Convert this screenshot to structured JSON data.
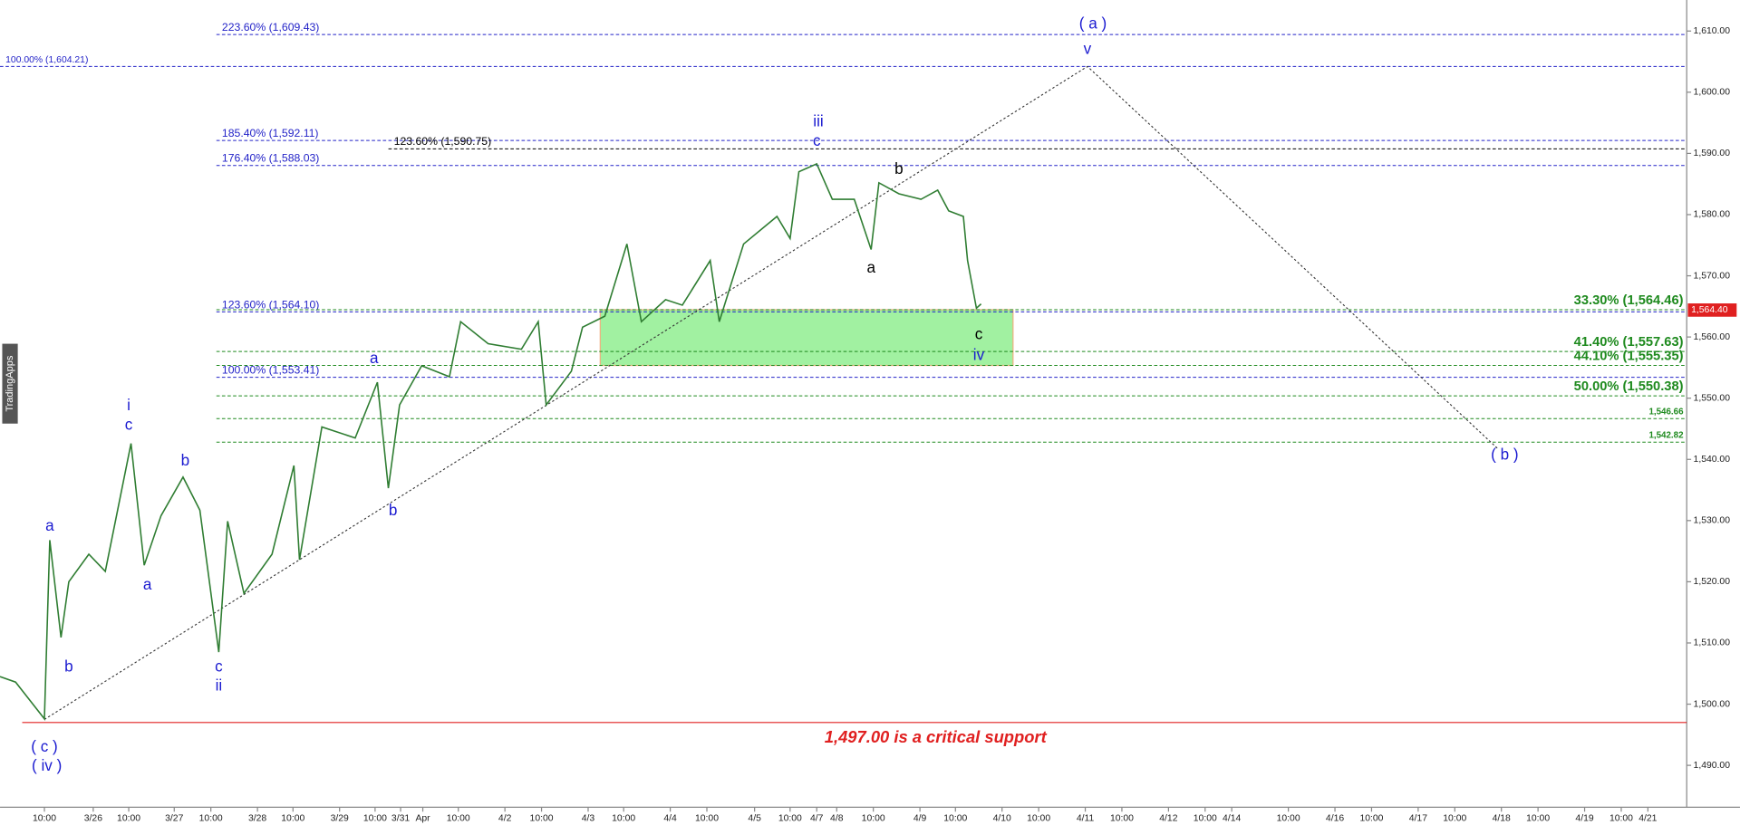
{
  "chart_data": {
    "type": "line",
    "ylim": [
      1483.15,
      1615.07
    ],
    "yticks": [
      {
        "value": 1490,
        "label": "1,490.00"
      },
      {
        "value": 1500,
        "label": "1,500.00"
      },
      {
        "value": 1510,
        "label": "1,510.00"
      },
      {
        "value": 1520,
        "label": "1,520.00"
      },
      {
        "value": 1530,
        "label": "1,530.00"
      },
      {
        "value": 1540,
        "label": "1,540.00"
      },
      {
        "value": 1550,
        "label": "1,550.00"
      },
      {
        "value": 1560,
        "label": "1,560.00"
      },
      {
        "value": 1570,
        "label": "1,570.00"
      },
      {
        "value": 1580,
        "label": "1,580.00"
      },
      {
        "value": 1590,
        "label": "1,590.00"
      },
      {
        "value": 1600,
        "label": "1,600.00"
      },
      {
        "value": 1610,
        "label": "1,610.00"
      }
    ],
    "xticks": [
      {
        "value": 0,
        "label": "10:00"
      },
      {
        "value": 1,
        "label": "3/26"
      },
      {
        "value": 2,
        "label": "10:00"
      },
      {
        "value": 3,
        "label": "3/27"
      },
      {
        "value": 4,
        "label": "10:00"
      },
      {
        "value": 5,
        "label": "3/28"
      },
      {
        "value": 6,
        "label": "10:00"
      },
      {
        "value": 7,
        "label": "3/29"
      },
      {
        "value": 8,
        "label": "10:00"
      },
      {
        "value": 9,
        "label": "3/31"
      },
      {
        "value": 10,
        "label": "Apr"
      },
      {
        "value": 11,
        "label": "10:00"
      },
      {
        "value": 12,
        "label": "4/2"
      },
      {
        "value": 13,
        "label": "10:00"
      },
      {
        "value": 14,
        "label": "4/3"
      },
      {
        "value": 15,
        "label": "10:00"
      },
      {
        "value": 16,
        "label": "4/4"
      },
      {
        "value": 17,
        "label": "10:00"
      },
      {
        "value": 18,
        "label": "4/5"
      },
      {
        "value": 19,
        "label": "10:00"
      },
      {
        "value": 20,
        "label": "4/7"
      },
      {
        "value": 21,
        "label": "4/8"
      },
      {
        "value": 22,
        "label": "10:00"
      },
      {
        "value": 23,
        "label": "4/9"
      },
      {
        "value": 24,
        "label": "10:00"
      },
      {
        "value": 25,
        "label": "4/10"
      },
      {
        "value": 26,
        "label": "10:00"
      },
      {
        "value": 27,
        "label": "4/11"
      },
      {
        "value": 28,
        "label": "10:00"
      },
      {
        "value": 29,
        "label": "4/12"
      },
      {
        "value": 30,
        "label": "10:00"
      },
      {
        "value": 31,
        "label": "4/14"
      },
      {
        "value": 32,
        "label": "10:00"
      },
      {
        "value": 33,
        "label": "4/16"
      },
      {
        "value": 34,
        "label": "10:00"
      },
      {
        "value": 35,
        "label": "4/17"
      },
      {
        "value": 36,
        "label": "10:00"
      },
      {
        "value": 37,
        "label": "4/18"
      },
      {
        "value": 38,
        "label": "10:00"
      },
      {
        "value": 39,
        "label": "4/19"
      },
      {
        "value": 40,
        "label": "10:00"
      },
      {
        "value": 41,
        "label": "4/21"
      }
    ],
    "price": {
      "color": "#2f7d32",
      "x": [
        -0.91,
        -0.59,
        0,
        0.11,
        0.34,
        0.5,
        0.91,
        1.34,
        2.05,
        2.34,
        2.71,
        3.24,
        3.7,
        4.17,
        4.36,
        4.71,
        5.41,
        6.02,
        6.14,
        6.62,
        7.44,
        8.09,
        8.52,
        8.96,
        9.95,
        10.75,
        11.05,
        11.64,
        12.45,
        12.91,
        13.1,
        13.64,
        13.88,
        14.47,
        15.07,
        15.38,
        15.9,
        16.33,
        17.07,
        17.26,
        17.77,
        18.63,
        19,
        19.33,
        20,
        20.78,
        21.48,
        21.94,
        22.12,
        22.55,
        23.03,
        23.5,
        23.81,
        24.17,
        24.26,
        24.45,
        24.55
      ],
      "values": [
        1504.5,
        1503.6,
        1497.6,
        1526.8,
        1510.9,
        1520,
        1524.5,
        1521.7,
        1542.6,
        1522.7,
        1530.8,
        1537.1,
        1531.7,
        1508.5,
        1529.9,
        1518.1,
        1524.5,
        1539,
        1523.6,
        1545.3,
        1543.5,
        1552.6,
        1535.3,
        1548.9,
        1555.3,
        1553.5,
        1562.5,
        1558.9,
        1558,
        1562.5,
        1548.9,
        1554.4,
        1561.6,
        1563.4,
        1575.2,
        1562.5,
        1566.1,
        1565.2,
        1572.5,
        1562.5,
        1575.2,
        1579.7,
        1576.1,
        1587,
        1588.3,
        1582.5,
        1582.5,
        1574.3,
        1585.2,
        1583.4,
        1582.5,
        1584,
        1580.6,
        1579.7,
        1572.5,
        1564.7,
        1565.4
      ]
    },
    "last_price": {
      "value": 1564.4,
      "label": "1,564.40"
    },
    "zone": {
      "xlim": [
        14.34,
        25.3
      ],
      "ylim": [
        1555.35,
        1564.46
      ],
      "color": "#90ee90"
    },
    "projection": {
      "x": [
        0,
        27.06,
        36.93
      ],
      "values": [
        1497.5,
        1604.21,
        1541.7
      ]
    },
    "levels": [
      {
        "value": 1609.43,
        "label": "223.60% (1,609.43)",
        "color": "#2323c8"
      },
      {
        "value": 1604.21,
        "label": "100.00% (1,604.21)",
        "color": "#2323c8"
      },
      {
        "value": 1592.11,
        "label": "185.40% (1,592.11)",
        "color": "#2323c8"
      },
      {
        "value": 1590.75,
        "label": "123.60% (1,590.75)",
        "color": "#000000"
      },
      {
        "value": 1588.03,
        "label": "176.40% (1,588.03)",
        "color": "#2323c8"
      },
      {
        "value": 1564.1,
        "label": "123.60% (1,564.10)",
        "color": "#2323c8"
      },
      {
        "value": 1553.41,
        "label": "100.00% (1,553.41)",
        "color": "#2323c8"
      },
      {
        "value": 1564.46,
        "label": "33.30% (1,564.46)",
        "color": "#1e8a1e"
      },
      {
        "value": 1557.63,
        "label": "41.40% (1,557.63)",
        "color": "#1e8a1e"
      },
      {
        "value": 1555.35,
        "label": "44.10% (1,555.35)",
        "color": "#1e8a1e"
      },
      {
        "value": 1550.38,
        "label": "50.00% (1,550.38)",
        "color": "#1e8a1e"
      },
      {
        "value": 1546.66,
        "label": "1,546.66",
        "color": "#1e8a1e"
      },
      {
        "value": 1542.82,
        "label": "1,542.82",
        "color": "#1e8a1e"
      }
    ],
    "support": {
      "value": 1497,
      "text": "1,497.00 is a critical support",
      "color": "#e02020"
    },
    "annotations": [
      {
        "text": "( a )",
        "x": 27.21,
        "y": 1611.1,
        "color": "#1a1ad0"
      },
      {
        "text": "v",
        "x": 27.06,
        "y": 1606.9,
        "color": "#1a1ad0"
      },
      {
        "text": "iii",
        "x": 20.08,
        "y": 1595.1,
        "color": "#1a1ad0"
      },
      {
        "text": "c",
        "x": 20,
        "y": 1591.9,
        "color": "#1a1ad0"
      },
      {
        "text": "b",
        "x": 22.55,
        "y": 1587.3,
        "color": "#000000"
      },
      {
        "text": "a",
        "x": 21.94,
        "y": 1571.2,
        "color": "#000000"
      },
      {
        "text": "c",
        "x": 24.5,
        "y": 1560.3,
        "color": "#000000"
      },
      {
        "text": "iv",
        "x": 24.5,
        "y": 1556.9,
        "color": "#1a1ad0"
      },
      {
        "text": "a",
        "x": 7.97,
        "y": 1556.4,
        "color": "#1a1ad0"
      },
      {
        "text": "b",
        "x": 8.7,
        "y": 1531.5,
        "color": "#1a1ad0"
      },
      {
        "text": "i",
        "x": 2,
        "y": 1548.7,
        "color": "#1a1ad0"
      },
      {
        "text": "c",
        "x": 2,
        "y": 1545.5,
        "color": "#1a1ad0"
      },
      {
        "text": "b",
        "x": 3.3,
        "y": 1539.7,
        "color": "#1a1ad0"
      },
      {
        "text": "a",
        "x": 0.11,
        "y": 1529,
        "color": "#1a1ad0"
      },
      {
        "text": "b",
        "x": 0.5,
        "y": 1506,
        "color": "#1a1ad0"
      },
      {
        "text": "a",
        "x": 2.41,
        "y": 1519.4,
        "color": "#1a1ad0"
      },
      {
        "text": "c",
        "x": 4.17,
        "y": 1506,
        "color": "#1a1ad0"
      },
      {
        "text": "ii",
        "x": 4.17,
        "y": 1502.9,
        "color": "#1a1ad0"
      },
      {
        "text": "( c )",
        "x": 0,
        "y": 1492.9,
        "color": "#1a1ad0"
      },
      {
        "text": "( iv )",
        "x": 0.05,
        "y": 1489.8,
        "color": "#1a1ad0"
      },
      {
        "text": "( b )",
        "x": 37.09,
        "y": 1540.6,
        "color": "#1a1ad0"
      }
    ],
    "watermark": "TradingApps"
  }
}
